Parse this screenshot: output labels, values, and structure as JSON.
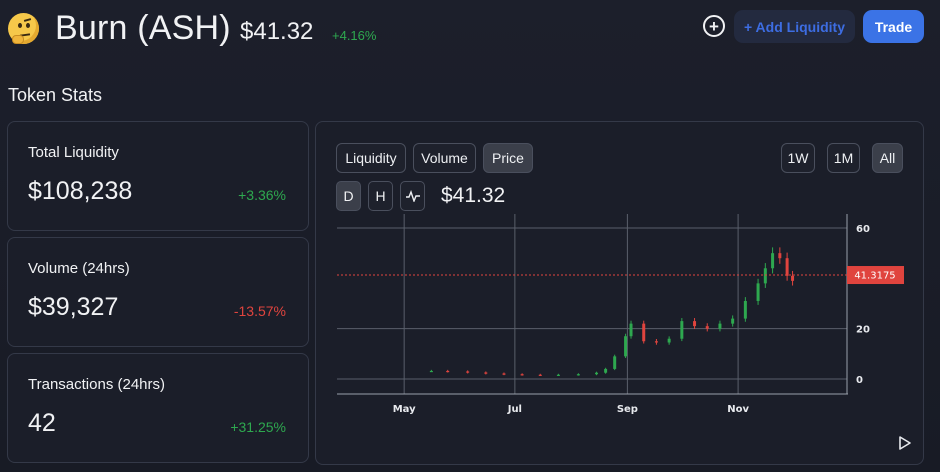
{
  "header": {
    "emoji_icon": "thinking-face-icon",
    "token_name": "Burn (ASH)",
    "price": "$41.32",
    "change": "+4.16%",
    "add_liquidity_label": "+ Add Liquidity",
    "trade_label": "Trade",
    "plus_symbol": "+"
  },
  "section_title": "Token Stats",
  "stats": [
    {
      "label": "Total Liquidity",
      "value": "$108,238",
      "delta": "+3.36%"
    },
    {
      "label": "Volume (24hrs)",
      "value": "$39,327",
      "delta": "-13.57%"
    },
    {
      "label": "Transactions (24hrs)",
      "value": "42",
      "delta": "+31.25%"
    }
  ],
  "chart_panel": {
    "tabs": [
      "Liquidity",
      "Volume",
      "Price"
    ],
    "active_tab": "Price",
    "ranges": [
      "1W",
      "1M",
      "All"
    ],
    "active_range": "All",
    "intervals": [
      "D",
      "H"
    ],
    "active_interval": "D",
    "current_price": "$41.32",
    "colors": {
      "up": "#2ea84f",
      "down": "#e0443e",
      "current_line": "#e0443e",
      "grid": "#5a5f6b"
    }
  },
  "chart_data": {
    "type": "line",
    "title": "",
    "x_ticks": [
      "May",
      "Jul",
      "Sep",
      "Nov"
    ],
    "y_ticks": [
      0,
      20,
      60
    ],
    "ylim": [
      -5,
      65
    ],
    "current_price_label": "41.3175",
    "current_price": 41.3175,
    "series": [
      {
        "x": [
          "2021-05-16",
          "2021-05-25",
          "2021-06-05",
          "2021-06-15",
          "2021-06-25",
          "2021-07-05",
          "2021-07-15",
          "2021-07-25",
          "2021-08-05",
          "2021-08-15",
          "2021-08-20",
          "2021-08-25",
          "2021-08-31",
          "2021-09-03",
          "2021-09-10",
          "2021-09-17",
          "2021-09-24",
          "2021-10-01",
          "2021-10-08",
          "2021-10-15",
          "2021-10-22",
          "2021-10-29",
          "2021-11-05",
          "2021-11-12",
          "2021-11-16",
          "2021-11-20",
          "2021-11-24",
          "2021-11-28",
          "2021-12-01"
        ],
        "values": [
          3.2,
          3.0,
          2.6,
          2.2,
          1.9,
          1.7,
          1.6,
          1.7,
          1.9,
          2.5,
          4,
          9,
          17,
          22,
          15,
          14.5,
          16,
          23,
          21,
          20,
          22,
          24,
          31,
          38,
          44,
          50,
          48,
          41,
          39
        ]
      }
    ]
  }
}
